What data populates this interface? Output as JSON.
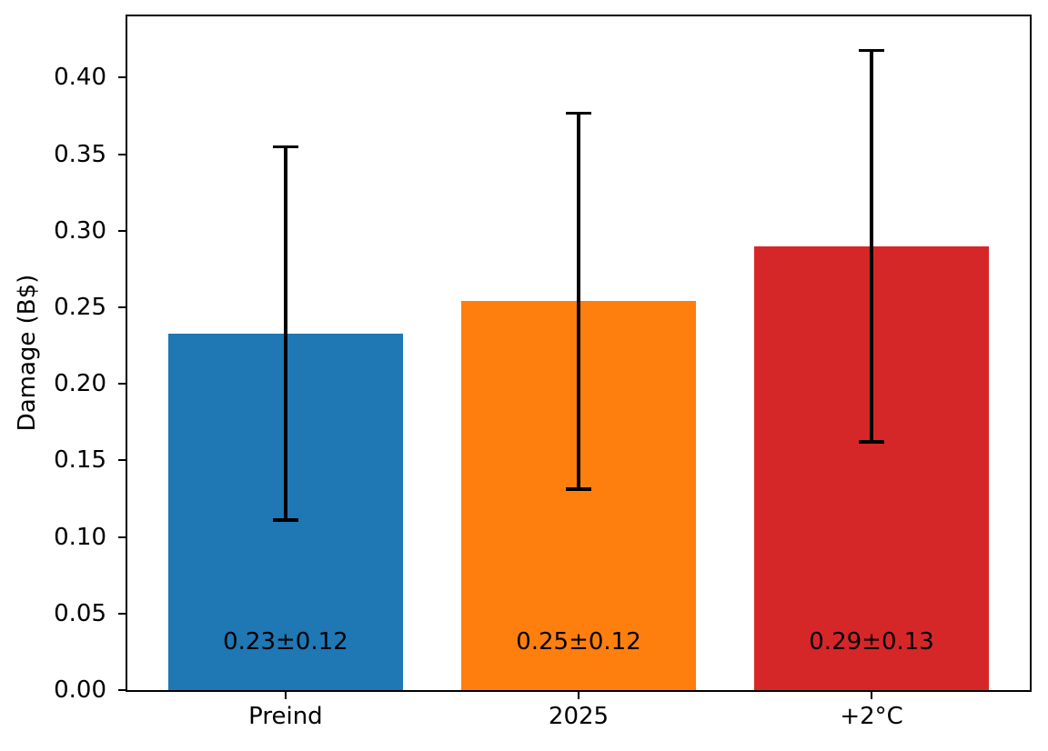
{
  "figure": {
    "background": "#ffffff",
    "text_color": "#000000"
  },
  "chart_data": {
    "type": "bar",
    "title": "",
    "xlabel": "",
    "ylabel": "Damage (B$)",
    "categories": [
      "Preind",
      "2025",
      "+2°C"
    ],
    "values": [
      0.233,
      0.254,
      0.29
    ],
    "errors": [
      0.122,
      0.123,
      0.128
    ],
    "bar_labels": [
      "0.23±0.12",
      "0.25±0.12",
      "0.29±0.13"
    ],
    "bar_colors": [
      "#1f77b4",
      "#ff7f0e",
      "#d62728"
    ],
    "error_color": "#000000",
    "yticks": [
      0.0,
      0.05,
      0.1,
      0.15,
      0.2,
      0.25,
      0.3,
      0.35,
      0.4
    ],
    "ytick_labels": [
      "0.00",
      "0.05",
      "0.10",
      "0.15",
      "0.20",
      "0.25",
      "0.30",
      "0.35",
      "0.40"
    ],
    "ylim": [
      0,
      0.44
    ],
    "grid": false,
    "legend": null
  }
}
